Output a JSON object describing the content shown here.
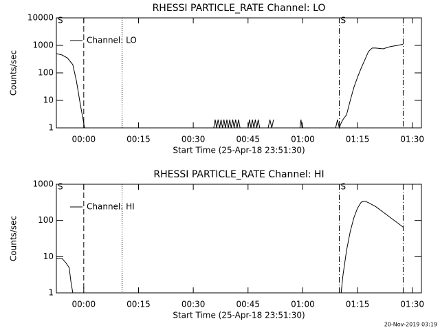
{
  "chart_data": [
    {
      "type": "line",
      "title": "RHESSI PARTICLE_RATE Channel: LO",
      "xlabel": "Start Time (25-Apr-18 23:51:30)",
      "ylabel": "Counts/sec",
      "x": [
        -7.5,
        -6,
        -4.5,
        -3,
        -2,
        -1,
        0,
        0.2,
        null,
        35.6,
        36,
        36.4,
        36.8,
        37.2,
        37.6,
        38,
        38.4,
        38.8,
        39.2,
        39.6,
        40,
        40.4,
        40.8,
        41.2,
        41.6,
        42,
        42.4,
        42.8,
        null,
        45,
        45.4,
        45.8,
        46.2,
        46.6,
        47,
        47.4,
        47.8,
        48.2,
        null,
        50.5,
        51,
        51.5,
        52,
        null,
        59.2,
        59.5,
        59.8,
        null,
        69,
        69.5,
        70,
        70.5,
        71,
        72,
        73,
        74,
        75,
        76,
        77,
        78,
        79,
        80,
        82,
        84,
        86,
        87.5
      ],
      "series": [
        {
          "name": "Channel: LO",
          "color": "#000000",
          "values": [
            500,
            450,
            350,
            200,
            50,
            8,
            1.5,
            1,
            null,
            1,
            2,
            1,
            2,
            1,
            2,
            1,
            2,
            1,
            2,
            1,
            2,
            1,
            2,
            1,
            2,
            1,
            2,
            1,
            null,
            1,
            2,
            1,
            2,
            1,
            2,
            1,
            2,
            1,
            null,
            1,
            2,
            1,
            2,
            null,
            1,
            2,
            1,
            null,
            1,
            2,
            1,
            1.5,
            2,
            3,
            10,
            30,
            70,
            150,
            300,
            600,
            800,
            800,
            750,
            900,
            1000,
            1100
          ]
        }
      ],
      "xlim": [
        -7.5,
        92.5
      ],
      "xticks": [
        {
          "value": 0,
          "label": "00:00"
        },
        {
          "value": 15,
          "label": "00:15"
        },
        {
          "value": 30,
          "label": "00:30"
        },
        {
          "value": 45,
          "label": "00:45"
        },
        {
          "value": 60,
          "label": "01:00"
        },
        {
          "value": 75,
          "label": "01:15"
        },
        {
          "value": 90,
          "label": "01:30"
        }
      ],
      "ylim": [
        1,
        10000
      ],
      "yticks": [
        1,
        10,
        100,
        1000,
        10000
      ],
      "log_y": true,
      "vlines": [
        {
          "x": 0,
          "style": "dashed"
        },
        {
          "x": 10.5,
          "style": "dotted"
        },
        {
          "x": 70,
          "style": "dashdot"
        },
        {
          "x": 87.5,
          "style": "dashdot"
        }
      ],
      "markers": [
        {
          "x": -7.5,
          "label": "S"
        },
        {
          "x": 70,
          "label": "S"
        }
      ]
    },
    {
      "type": "line",
      "title": "RHESSI PARTICLE_RATE Channel: HI",
      "xlabel": "Start Time (25-Apr-18 23:51:30)",
      "ylabel": "Counts/sec",
      "x": [
        -7.5,
        -6,
        -5,
        -4,
        -3.5,
        -3,
        null,
        70.5,
        71,
        72,
        73,
        74,
        75,
        76,
        77,
        78,
        80,
        82,
        84,
        86,
        87.5
      ],
      "series": [
        {
          "name": "Channel: HI",
          "color": "#000000",
          "values": [
            9,
            9,
            7,
            5,
            2,
            1,
            null,
            1,
            3,
            15,
            50,
            120,
            220,
            320,
            340,
            310,
            240,
            170,
            120,
            85,
            65
          ]
        }
      ],
      "xlim": [
        -7.5,
        92.5
      ],
      "xticks": [
        {
          "value": 0,
          "label": "00:00"
        },
        {
          "value": 15,
          "label": "00:15"
        },
        {
          "value": 30,
          "label": "00:30"
        },
        {
          "value": 45,
          "label": "00:45"
        },
        {
          "value": 60,
          "label": "01:00"
        },
        {
          "value": 75,
          "label": "01:15"
        },
        {
          "value": 90,
          "label": "01:30"
        }
      ],
      "ylim": [
        1,
        1000
      ],
      "yticks": [
        1,
        10,
        100,
        1000
      ],
      "log_y": true,
      "vlines": [
        {
          "x": 0,
          "style": "dashed"
        },
        {
          "x": 10.5,
          "style": "dotted"
        },
        {
          "x": 70,
          "style": "dashdot"
        },
        {
          "x": 87.5,
          "style": "dashdot"
        }
      ],
      "markers": [
        {
          "x": -7.5,
          "label": "S"
        },
        {
          "x": 70,
          "label": "S"
        }
      ]
    }
  ],
  "timestamp": "20-Nov-2019 03:19"
}
